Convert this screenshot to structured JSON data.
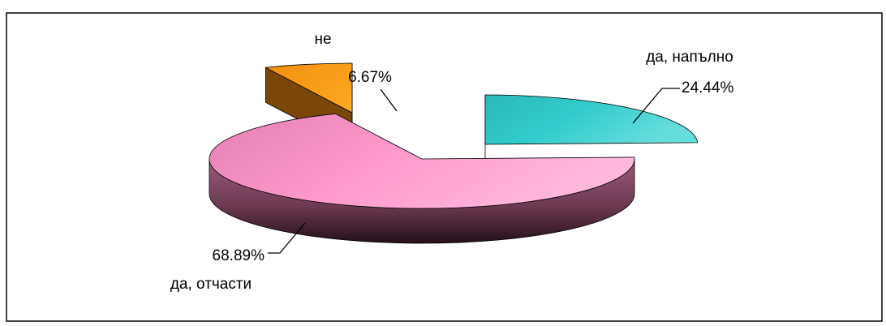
{
  "chart_data": {
    "type": "pie",
    "style": "3d-exploded",
    "slices": [
      {
        "category": "да, напълно",
        "value": 24.44,
        "value_label": "24.44%",
        "color": "#33cccc"
      },
      {
        "category": "да, отчасти",
        "value": 68.89,
        "value_label": "68.89%",
        "color": "#ff99cc"
      },
      {
        "category": "не",
        "value": 6.67,
        "value_label": "6.67%",
        "color": "#ff9900"
      }
    ],
    "legend": "none"
  }
}
